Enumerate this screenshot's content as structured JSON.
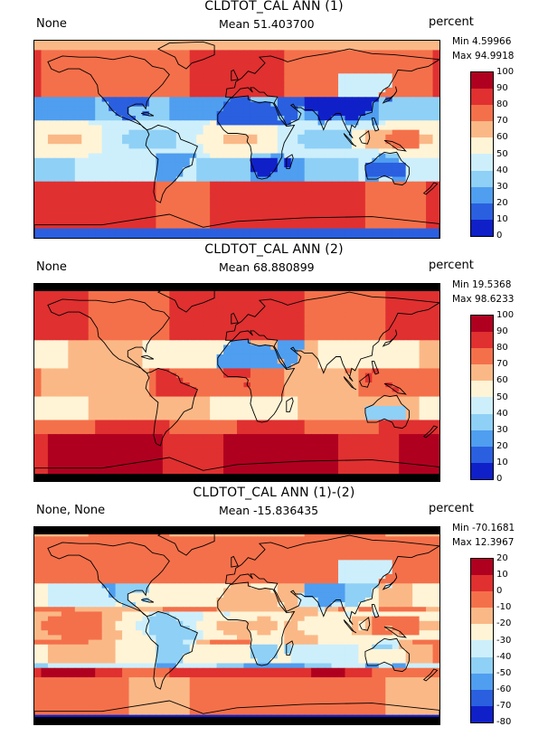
{
  "panels": [
    {
      "title": "CLDTOT_CAL ANN (1)",
      "left_label": "None",
      "mean_label": "Mean 51.403700",
      "units": "percent",
      "min_label": "Min 4.59966",
      "max_label": "Max 94.9918",
      "colorbar_ticks": [
        "100",
        "90",
        "80",
        "70",
        "60",
        "50",
        "40",
        "30",
        "20",
        "10",
        "0"
      ],
      "colorbar_colors": [
        "#b00020",
        "#e03030",
        "#f4704a",
        "#fbb887",
        "#fff4d6",
        "#cdeffc",
        "#8fd0f6",
        "#4f9ef0",
        "#2a5fe0",
        "#1020c8"
      ],
      "field_mean": 51.4,
      "has_black_strips": false
    },
    {
      "title": "CLDTOT_CAL ANN (2)",
      "left_label": "None",
      "mean_label": "Mean 68.880899",
      "units": "percent",
      "min_label": "Min 19.5368",
      "max_label": "Max 98.6233",
      "colorbar_ticks": [
        "100",
        "90",
        "80",
        "70",
        "60",
        "50",
        "40",
        "30",
        "20",
        "10",
        "0"
      ],
      "colorbar_colors": [
        "#b00020",
        "#e03030",
        "#f4704a",
        "#fbb887",
        "#fff4d6",
        "#cdeffc",
        "#8fd0f6",
        "#4f9ef0",
        "#2a5fe0",
        "#1020c8"
      ],
      "field_mean": 68.9,
      "has_black_strips": true
    },
    {
      "title": "CLDTOT_CAL ANN (1)-(2)",
      "left_label": "None, None",
      "mean_label": "Mean -15.836435",
      "units": "percent",
      "min_label": "Min -70.1681",
      "max_label": "Max 12.3967",
      "colorbar_ticks": [
        "20",
        "10",
        "0",
        "-10",
        "-20",
        "-30",
        "-40",
        "-50",
        "-60",
        "-70",
        "-80"
      ],
      "colorbar_colors": [
        "#b00020",
        "#e03030",
        "#f4704a",
        "#fbb887",
        "#fff4d6",
        "#cdeffc",
        "#8fd0f6",
        "#4f9ef0",
        "#2a5fe0",
        "#1020c8"
      ],
      "field_mean": -15.8,
      "has_black_strips": true
    }
  ]
}
